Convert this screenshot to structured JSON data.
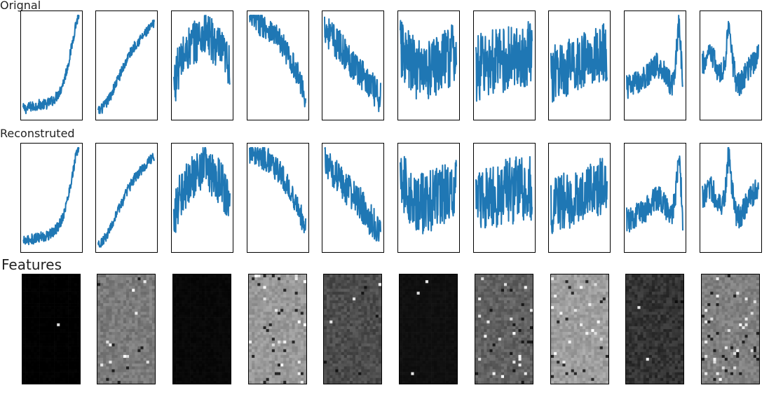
{
  "chart_data": {
    "type": "line",
    "row_titles": [
      "Orignal",
      "Reconstruted",
      "Features"
    ],
    "line_color": "#1f77b4",
    "panels_per_row": 10,
    "feature_maps": {
      "type": "heatmap",
      "colormap": "grayscale",
      "mean_brightness": [
        0.0,
        0.48,
        0.03,
        0.6,
        0.3,
        0.06,
        0.38,
        0.62,
        0.2,
        0.5
      ],
      "bright_pixel_fraction": [
        0.002,
        0.01,
        0.002,
        0.03,
        0.01,
        0.003,
        0.02,
        0.03,
        0.003,
        0.04
      ]
    },
    "series": [
      {
        "shape": [
          0.08,
          0.08,
          0.1,
          0.1,
          0.12,
          0.12,
          0.12,
          0.14,
          0.16,
          0.2,
          0.26,
          0.36,
          0.5,
          0.68,
          0.88,
          1.0
        ],
        "noise": 0.05
      },
      {
        "shape": [
          0.05,
          0.08,
          0.12,
          0.18,
          0.26,
          0.34,
          0.42,
          0.5,
          0.58,
          0.64,
          0.7,
          0.74,
          0.78,
          0.82,
          0.86,
          0.9
        ],
        "noise": 0.05
      },
      {
        "shape": [
          0.3,
          0.45,
          0.55,
          0.6,
          0.66,
          0.7,
          0.74,
          0.78,
          0.8,
          0.8,
          0.74,
          0.7,
          0.66,
          0.6,
          0.55,
          0.5
        ],
        "noise": 0.22
      },
      {
        "shape": [
          0.95,
          0.94,
          0.92,
          0.9,
          0.88,
          0.86,
          0.82,
          0.78,
          0.74,
          0.68,
          0.62,
          0.55,
          0.48,
          0.4,
          0.3,
          0.18
        ],
        "noise": 0.12
      },
      {
        "shape": [
          0.88,
          0.82,
          0.76,
          0.72,
          0.68,
          0.64,
          0.58,
          0.54,
          0.5,
          0.46,
          0.42,
          0.36,
          0.3,
          0.26,
          0.22,
          0.2
        ],
        "noise": 0.16
      },
      {
        "shape": [
          0.65,
          0.6,
          0.55,
          0.5,
          0.48,
          0.46,
          0.45,
          0.45,
          0.46,
          0.48,
          0.5,
          0.52,
          0.55,
          0.58,
          0.6,
          0.62
        ],
        "noise": 0.3
      },
      {
        "shape": [
          0.45,
          0.48,
          0.5,
          0.5,
          0.52,
          0.52,
          0.54,
          0.55,
          0.55,
          0.56,
          0.56,
          0.58,
          0.58,
          0.6,
          0.6,
          0.6
        ],
        "noise": 0.32
      },
      {
        "shape": [
          0.4,
          0.42,
          0.45,
          0.45,
          0.46,
          0.48,
          0.5,
          0.52,
          0.52,
          0.55,
          0.55,
          0.56,
          0.58,
          0.6,
          0.62,
          0.6
        ],
        "noise": 0.28
      },
      {
        "shape": [
          0.3,
          0.28,
          0.32,
          0.34,
          0.36,
          0.38,
          0.42,
          0.46,
          0.5,
          0.48,
          0.44,
          0.38,
          0.3,
          0.5,
          0.95,
          0.3
        ],
        "noise": 0.12
      },
      {
        "shape": [
          0.5,
          0.55,
          0.6,
          0.55,
          0.45,
          0.4,
          0.5,
          0.95,
          0.55,
          0.35,
          0.3,
          0.38,
          0.45,
          0.5,
          0.55,
          0.6
        ],
        "noise": 0.12
      }
    ]
  }
}
